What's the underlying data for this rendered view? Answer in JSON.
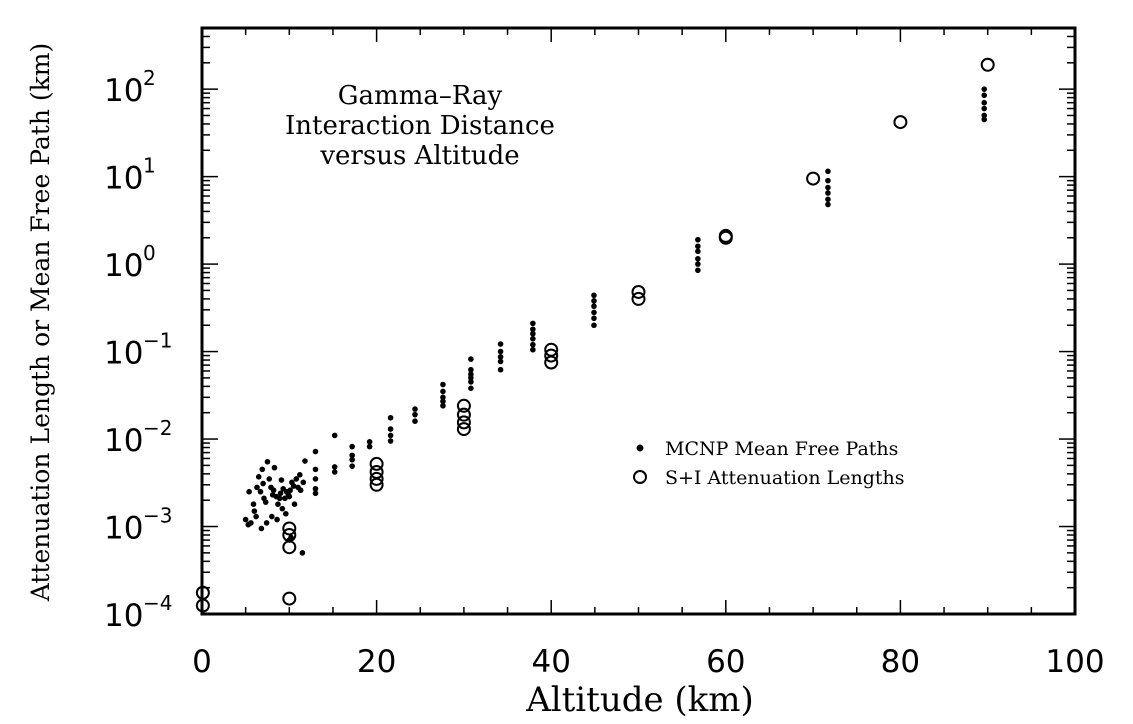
{
  "chart_data": {
    "type": "scatter",
    "title": "",
    "annotation_lines": [
      "Gamma–Ray",
      "Interaction Distance",
      "versus Altitude"
    ],
    "xlabel": "Altitude (km)",
    "ylabel": "Attenuation Length or Mean Free Path (km)",
    "xlim": [
      0,
      100
    ],
    "ylim": [
      0.0001,
      500
    ],
    "yscale": "log",
    "grid": false,
    "legend_position": "right-middle",
    "x_ticks": [
      {
        "value": 0,
        "label": "0"
      },
      {
        "value": 20,
        "label": "20"
      },
      {
        "value": 40,
        "label": "40"
      },
      {
        "value": 60,
        "label": "60"
      },
      {
        "value": 80,
        "label": "80"
      },
      {
        "value": 100,
        "label": "100"
      }
    ],
    "y_ticks": [
      {
        "value": 0.0001,
        "base": "10",
        "exp": "−4"
      },
      {
        "value": 0.001,
        "base": "10",
        "exp": "−3"
      },
      {
        "value": 0.01,
        "base": "10",
        "exp": "−2"
      },
      {
        "value": 0.1,
        "base": "10",
        "exp": "−1"
      },
      {
        "value": 1,
        "base": "10",
        "exp": "0"
      },
      {
        "value": 10,
        "base": "10",
        "exp": "1"
      },
      {
        "value": 100,
        "base": "10",
        "exp": "2"
      }
    ],
    "series": [
      {
        "name": "MCNP Mean Free Paths",
        "marker": "filled-dot",
        "points": [
          [
            5.0,
            0.0012
          ],
          [
            5.3,
            0.00105
          ],
          [
            5.6,
            0.0011
          ],
          [
            5.9,
            0.0018
          ],
          [
            5.4,
            0.0025
          ],
          [
            6.0,
            0.0015
          ],
          [
            6.3,
            0.0028
          ],
          [
            6.5,
            0.0037
          ],
          [
            6.7,
            0.0025
          ],
          [
            6.9,
            0.0045
          ],
          [
            7.1,
            0.0021
          ],
          [
            7.3,
            0.0019
          ],
          [
            7.5,
            0.0055
          ],
          [
            7.7,
            0.0035
          ],
          [
            7.9,
            0.0028
          ],
          [
            8.1,
            0.0023
          ],
          [
            8.3,
            0.0047
          ],
          [
            8.5,
            0.0022
          ],
          [
            8.7,
            0.0018
          ],
          [
            8.9,
            0.0021
          ],
          [
            9.1,
            0.0034
          ],
          [
            9.3,
            0.0027
          ],
          [
            9.5,
            0.0021
          ],
          [
            9.7,
            0.0025
          ],
          [
            9.9,
            0.0023
          ],
          [
            10.1,
            0.0026
          ],
          [
            10.3,
            0.0032
          ],
          [
            10.5,
            0.0029
          ],
          [
            10.8,
            0.0035
          ],
          [
            11.0,
            0.0028
          ],
          [
            11.3,
            0.0026
          ],
          [
            11.6,
            0.0032
          ],
          [
            6.2,
            0.0013
          ],
          [
            6.8,
            0.00095
          ],
          [
            7.4,
            0.0011
          ],
          [
            8.0,
            0.0013
          ],
          [
            8.6,
            0.0012
          ],
          [
            9.2,
            0.0016
          ],
          [
            9.6,
            0.0014
          ],
          [
            10.0,
            0.0022
          ],
          [
            10.6,
            0.0018
          ],
          [
            11.2,
            0.0039
          ],
          [
            11.5,
            0.0005
          ],
          [
            7.0,
            0.0031
          ],
          [
            8.2,
            0.0026
          ],
          [
            9.0,
            0.0024
          ],
          [
            10.0,
            0.0007
          ],
          [
            10.2,
            0.00075
          ],
          [
            11.8,
            0.0056
          ],
          [
            13.0,
            0.0072
          ],
          [
            13.0,
            0.0045
          ],
          [
            13.0,
            0.0035
          ],
          [
            13.0,
            0.0027
          ],
          [
            13.0,
            0.0024
          ],
          [
            15.2,
            0.011
          ],
          [
            15.2,
            0.0048
          ],
          [
            15.2,
            0.0042
          ],
          [
            17.2,
            0.0082
          ],
          [
            17.2,
            0.0065
          ],
          [
            17.2,
            0.0058
          ],
          [
            17.2,
            0.0049
          ],
          [
            19.2,
            0.0093
          ],
          [
            19.2,
            0.0082
          ],
          [
            21.6,
            0.0175
          ],
          [
            21.6,
            0.013
          ],
          [
            21.6,
            0.011
          ],
          [
            21.6,
            0.0095
          ],
          [
            24.4,
            0.022
          ],
          [
            24.4,
            0.019
          ],
          [
            24.4,
            0.016
          ],
          [
            27.6,
            0.042
          ],
          [
            27.6,
            0.035
          ],
          [
            27.6,
            0.03
          ],
          [
            27.6,
            0.027
          ],
          [
            27.6,
            0.024
          ],
          [
            30.8,
            0.082
          ],
          [
            30.8,
            0.062
          ],
          [
            30.8,
            0.055
          ],
          [
            30.8,
            0.05
          ],
          [
            30.8,
            0.045
          ],
          [
            30.8,
            0.038
          ],
          [
            34.2,
            0.122
          ],
          [
            34.2,
            0.1
          ],
          [
            34.2,
            0.087
          ],
          [
            34.2,
            0.077
          ],
          [
            34.2,
            0.062
          ],
          [
            37.9,
            0.21
          ],
          [
            37.9,
            0.18
          ],
          [
            37.9,
            0.16
          ],
          [
            37.9,
            0.14
          ],
          [
            37.9,
            0.12
          ],
          [
            37.9,
            0.105
          ],
          [
            44.9,
            0.44
          ],
          [
            44.9,
            0.38
          ],
          [
            44.9,
            0.33
          ],
          [
            44.9,
            0.28
          ],
          [
            44.9,
            0.24
          ],
          [
            44.9,
            0.2
          ],
          [
            56.8,
            1.9
          ],
          [
            56.8,
            1.6
          ],
          [
            56.8,
            1.4
          ],
          [
            56.8,
            1.15
          ],
          [
            56.8,
            1.0
          ],
          [
            56.8,
            0.85
          ],
          [
            71.7,
            11.5
          ],
          [
            71.7,
            9.0
          ],
          [
            71.7,
            7.5
          ],
          [
            71.7,
            6.5
          ],
          [
            71.7,
            5.5
          ],
          [
            71.7,
            4.8
          ],
          [
            89.6,
            100
          ],
          [
            89.6,
            85
          ],
          [
            89.6,
            70
          ],
          [
            89.6,
            60
          ],
          [
            89.6,
            50
          ],
          [
            89.6,
            45
          ]
        ]
      },
      {
        "name": "S+I Attenuation Lengths",
        "marker": "open-circle",
        "points": [
          [
            0.1,
            0.000175
          ],
          [
            0.1,
            0.000125
          ],
          [
            10.0,
            0.00095
          ],
          [
            10.0,
            0.0008
          ],
          [
            10.0,
            0.00058
          ],
          [
            10.0,
            0.00015
          ],
          [
            20.0,
            0.0052
          ],
          [
            20.0,
            0.0042
          ],
          [
            20.0,
            0.0035
          ],
          [
            20.0,
            0.003
          ],
          [
            30.0,
            0.024
          ],
          [
            30.0,
            0.019
          ],
          [
            30.0,
            0.0155
          ],
          [
            30.0,
            0.013
          ],
          [
            40.0,
            0.105
          ],
          [
            40.0,
            0.09
          ],
          [
            40.0,
            0.075
          ],
          [
            50.0,
            0.48
          ],
          [
            50.0,
            0.4
          ],
          [
            60.0,
            2.1
          ],
          [
            60.0,
            2.0
          ],
          [
            70.0,
            9.5
          ],
          [
            80.0,
            42
          ],
          [
            90.0,
            190
          ]
        ]
      }
    ]
  }
}
